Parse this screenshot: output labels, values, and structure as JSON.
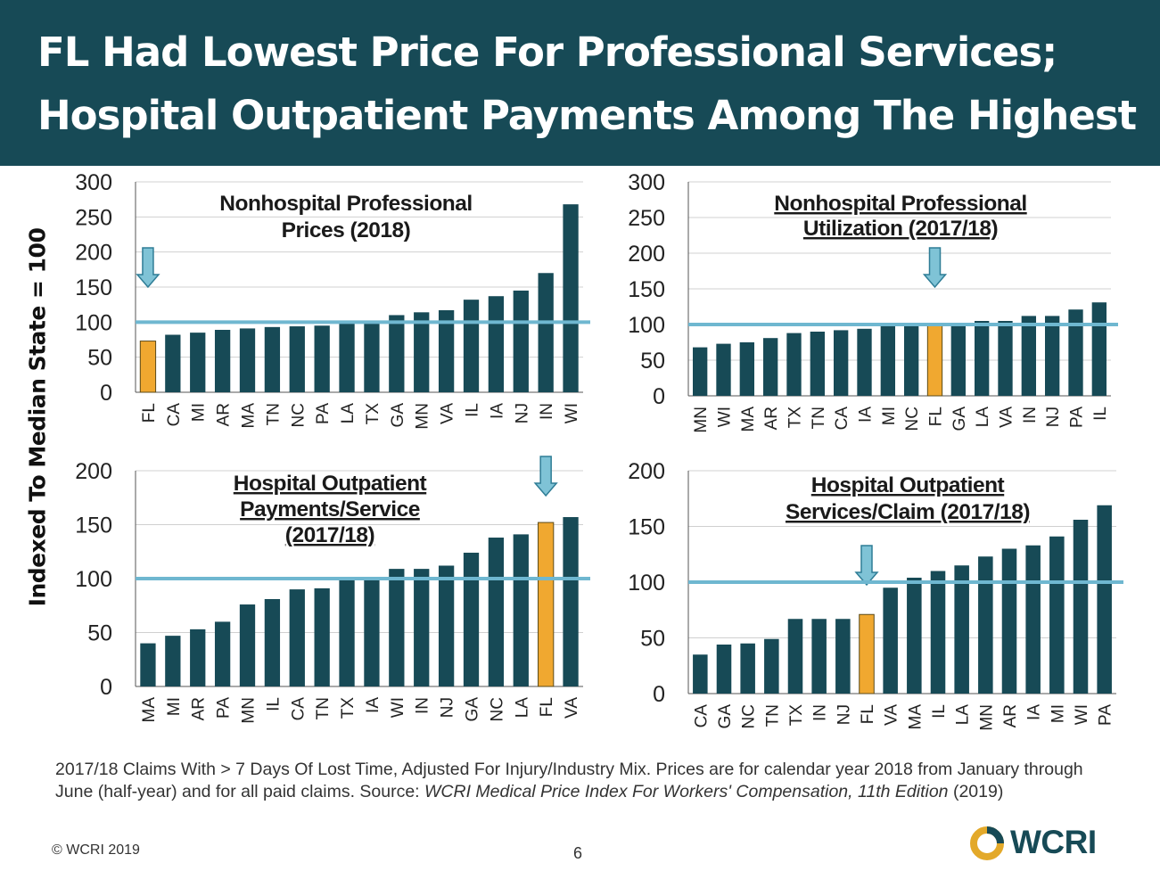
{
  "title": {
    "line1": "FL Had Lowest Price For Professional Services;",
    "line2": "Hospital Outpatient Payments Among The Highest"
  },
  "ylabel": "Indexed To Median State = 100",
  "colors": {
    "header_bg": "#174a56",
    "bar": "#174a56",
    "highlight_bar": "#f0a830",
    "reference_line": "#6fb7d0",
    "arrow": "#7fc3d6"
  },
  "chart_data": [
    {
      "type": "bar",
      "title_lines": [
        "Nonhospital Professional",
        "Prices (2018)"
      ],
      "title_underlined": false,
      "categories": [
        "FL",
        "CA",
        "MI",
        "AR",
        "MA",
        "TN",
        "NC",
        "PA",
        "LA",
        "TX",
        "GA",
        "MN",
        "VA",
        "IL",
        "IA",
        "NJ",
        "IN",
        "WI"
      ],
      "values": [
        73,
        82,
        85,
        89,
        91,
        93,
        94,
        95,
        100,
        100,
        110,
        114,
        117,
        132,
        137,
        145,
        170,
        268
      ],
      "highlight": "FL",
      "arrow_at": "FL",
      "reference_value": 100,
      "yticks": [
        0,
        50,
        100,
        150,
        200,
        250,
        300
      ],
      "ylim": [
        0,
        300
      ]
    },
    {
      "type": "bar",
      "title_lines": [
        "Nonhospital Professional",
        "Utilization (2017/18)"
      ],
      "title_underlined": true,
      "categories": [
        "MN",
        "WI",
        "MA",
        "AR",
        "TX",
        "TN",
        "CA",
        "IA",
        "MI",
        "NC",
        "FL",
        "GA",
        "LA",
        "VA",
        "IN",
        "NJ",
        "PA",
        "IL"
      ],
      "values": [
        68,
        73,
        75,
        81,
        88,
        90,
        92,
        94,
        99,
        100,
        100,
        100,
        105,
        105,
        112,
        112,
        121,
        131
      ],
      "highlight": "FL",
      "arrow_at": "FL",
      "reference_value": 100,
      "yticks": [
        0,
        50,
        100,
        150,
        200,
        250,
        300
      ],
      "ylim": [
        0,
        300
      ]
    },
    {
      "type": "bar",
      "title_lines": [
        "Hospital Outpatient",
        "Payments/Service",
        "(2017/18)"
      ],
      "title_underlined": true,
      "categories": [
        "MA",
        "MI",
        "AR",
        "PA",
        "MN",
        "IL",
        "CA",
        "TN",
        "TX",
        "IA",
        "WI",
        "IN",
        "NJ",
        "GA",
        "NC",
        "LA",
        "FL",
        "VA"
      ],
      "values": [
        40,
        47,
        53,
        60,
        76,
        81,
        90,
        91,
        100,
        100,
        109,
        109,
        112,
        124,
        138,
        141,
        152,
        157
      ],
      "highlight": "FL",
      "arrow_at": "FL",
      "reference_value": 100,
      "yticks": [
        0,
        50,
        100,
        150,
        200
      ],
      "ylim": [
        0,
        200
      ]
    },
    {
      "type": "bar",
      "title_lines": [
        "Hospital Outpatient",
        "Services/Claim (2017/18)"
      ],
      "title_underlined": true,
      "categories": [
        "CA",
        "GA",
        "NC",
        "TN",
        "TX",
        "IN",
        "NJ",
        "FL",
        "VA",
        "MA",
        "IL",
        "LA",
        "MN",
        "AR",
        "IA",
        "MI",
        "WI",
        "PA"
      ],
      "values": [
        35,
        44,
        45,
        49,
        67,
        67,
        67,
        71,
        95,
        104,
        110,
        115,
        123,
        130,
        133,
        141,
        156,
        169
      ],
      "highlight": "FL",
      "arrow_at": "FL",
      "reference_value": 100,
      "yticks": [
        0,
        50,
        100,
        150,
        200
      ],
      "ylim": [
        0,
        200
      ]
    }
  ],
  "footnote": {
    "text1": "2017/18 Claims With > 7 Days Of Lost Time, Adjusted For Injury/Industry Mix. Prices are for calendar year 2018 from January through June (half-year) and for all paid claims. Source: ",
    "source_italic": "WCRI Medical Price Index For Workers' Compensation, 11th Edition",
    "text2": " (2019)"
  },
  "copyright": "© WCRI 2019",
  "page_number": "6",
  "logo_text": "WCRI"
}
